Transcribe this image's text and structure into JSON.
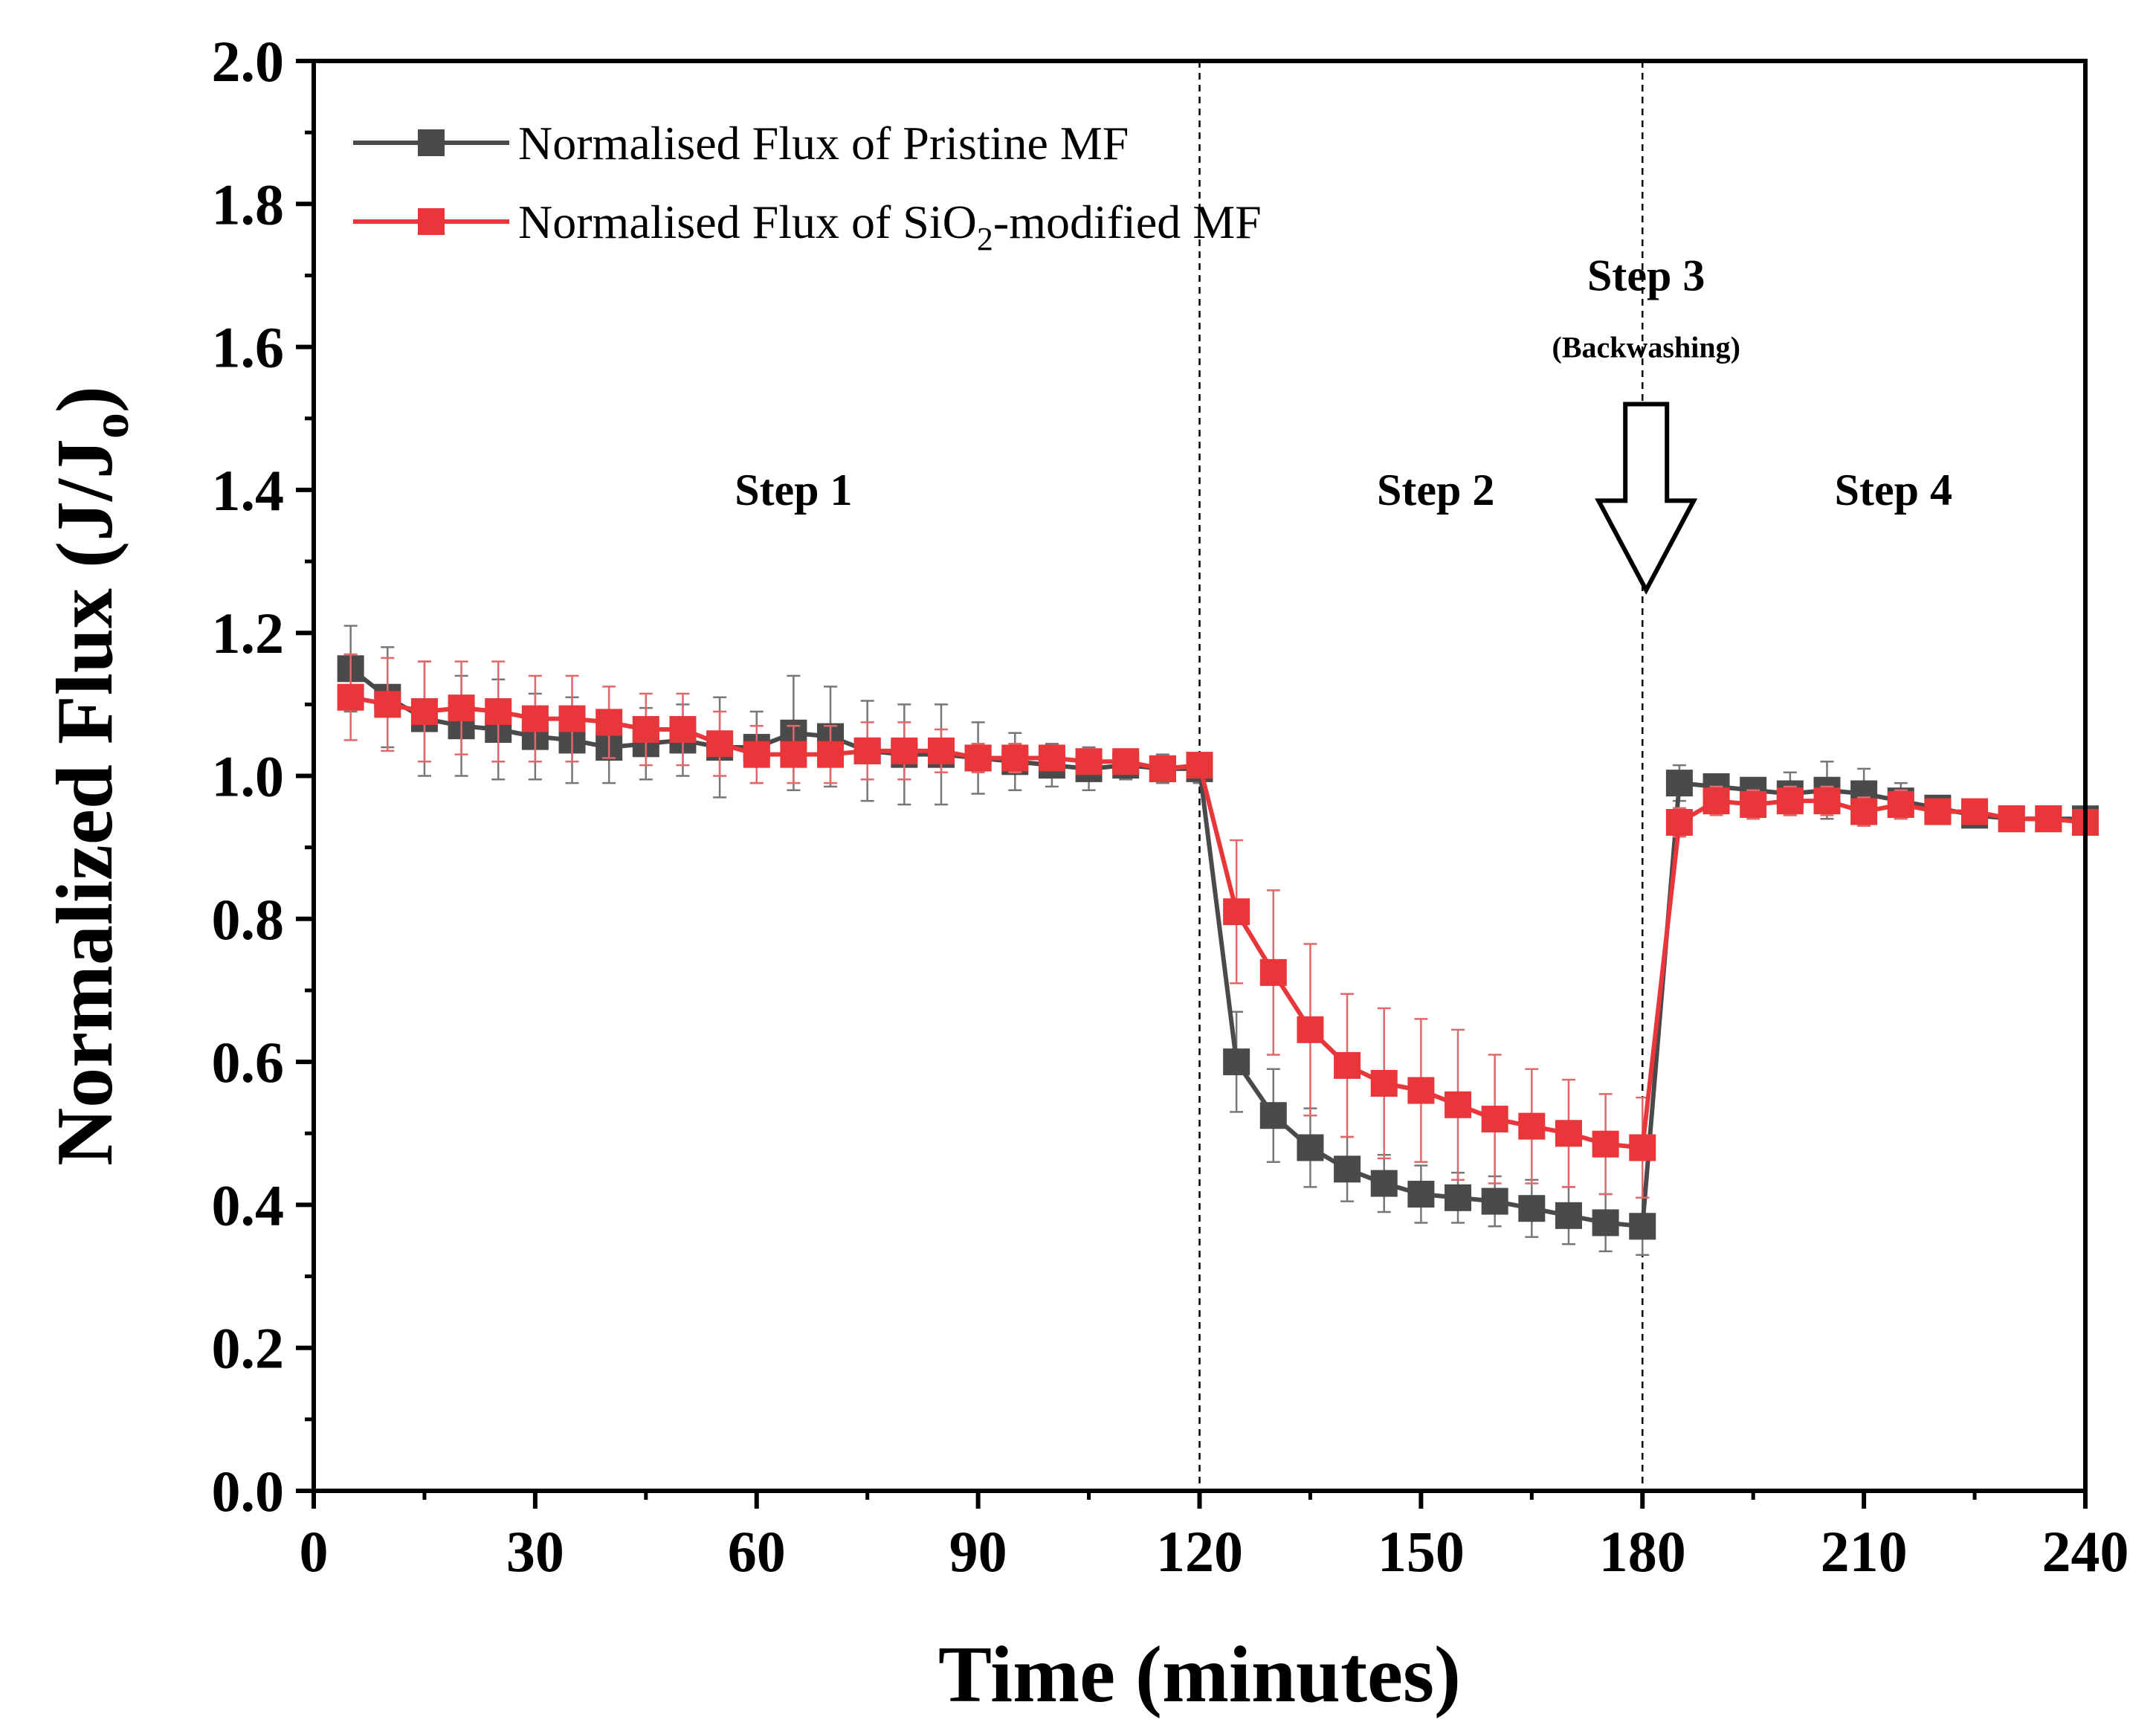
{
  "chart_data": {
    "type": "line",
    "xlabel": "Time (minutes)",
    "ylabel_main": "Normalized Flux (J/J",
    "ylabel_sub": "o",
    "ylabel_close": ")",
    "xlim": [
      0,
      240
    ],
    "ylim": [
      0.0,
      2.0
    ],
    "xticks": [
      0,
      30,
      60,
      90,
      120,
      150,
      180,
      210,
      240
    ],
    "xtick_labels": [
      "0",
      "30",
      "60",
      "90",
      "120",
      "150",
      "180",
      "210",
      "240"
    ],
    "yticks": [
      0.0,
      0.2,
      0.4,
      0.6,
      0.8,
      1.0,
      1.2,
      1.4,
      1.6,
      1.8,
      2.0
    ],
    "ytick_labels": [
      "0.0",
      "0.2",
      "0.4",
      "0.6",
      "0.8",
      "1.0",
      "1.2",
      "1.4",
      "1.6",
      "1.8",
      "2.0"
    ],
    "x": [
      5,
      10,
      15,
      20,
      25,
      30,
      35,
      40,
      45,
      50,
      55,
      60,
      65,
      70,
      75,
      80,
      85,
      90,
      95,
      100,
      105,
      110,
      115,
      120,
      125,
      130,
      135,
      140,
      145,
      150,
      155,
      160,
      165,
      170,
      175,
      180,
      185,
      190,
      195,
      200,
      205,
      210,
      215,
      220,
      225,
      230,
      235,
      240
    ],
    "series": [
      {
        "name": "Normalised Flux of Pristine MF",
        "color": "#4a4a4a",
        "values": [
          1.15,
          1.11,
          1.08,
          1.07,
          1.065,
          1.055,
          1.05,
          1.04,
          1.045,
          1.05,
          1.04,
          1.04,
          1.06,
          1.055,
          1.035,
          1.03,
          1.03,
          1.025,
          1.02,
          1.015,
          1.01,
          1.015,
          1.01,
          1.01,
          0.6,
          0.525,
          0.48,
          0.45,
          0.43,
          0.415,
          0.41,
          0.405,
          0.395,
          0.385,
          0.375,
          0.37,
          0.99,
          0.985,
          0.98,
          0.975,
          0.98,
          0.975,
          0.965,
          0.955,
          0.945,
          0.94,
          0.94,
          0.94
        ],
        "errors": [
          0.06,
          0.07,
          0.08,
          0.07,
          0.07,
          0.06,
          0.06,
          0.05,
          0.05,
          0.05,
          0.07,
          0.05,
          0.08,
          0.07,
          0.07,
          0.07,
          0.07,
          0.05,
          0.04,
          0.03,
          0.03,
          0.02,
          0.02,
          0.02,
          0.07,
          0.065,
          0.055,
          0.045,
          0.04,
          0.04,
          0.035,
          0.035,
          0.04,
          0.04,
          0.04,
          0.04,
          0.025,
          0.015,
          0.015,
          0.03,
          0.04,
          0.035,
          0.025,
          0.015,
          0.015,
          0.015,
          0.01,
          0.01
        ]
      },
      {
        "name": "Normalised Flux of SiO2-modified MF",
        "legend_text": [
          "Normalised Flux of SiO",
          "2",
          "-modified MF"
        ],
        "color": "#e8363b",
        "values": [
          1.11,
          1.1,
          1.09,
          1.095,
          1.09,
          1.08,
          1.08,
          1.075,
          1.065,
          1.065,
          1.045,
          1.03,
          1.03,
          1.03,
          1.035,
          1.035,
          1.035,
          1.025,
          1.025,
          1.025,
          1.02,
          1.02,
          1.01,
          1.015,
          0.81,
          0.725,
          0.645,
          0.595,
          0.57,
          0.56,
          0.54,
          0.52,
          0.51,
          0.5,
          0.485,
          0.48,
          0.935,
          0.965,
          0.96,
          0.965,
          0.965,
          0.95,
          0.96,
          0.95,
          0.95,
          0.94,
          0.94,
          0.935
        ],
        "errors": [
          0.06,
          0.065,
          0.07,
          0.065,
          0.07,
          0.06,
          0.06,
          0.05,
          0.05,
          0.05,
          0.045,
          0.04,
          0.04,
          0.04,
          0.04,
          0.04,
          0.03,
          0.02,
          0.02,
          0.015,
          0.015,
          0.01,
          0.01,
          0.015,
          0.1,
          0.115,
          0.12,
          0.1,
          0.105,
          0.1,
          0.105,
          0.09,
          0.08,
          0.075,
          0.07,
          0.07,
          0.02,
          0.02,
          0.02,
          0.02,
          0.02,
          0.02,
          0.02,
          0.015,
          0.015,
          0.015,
          0.01,
          0.01
        ]
      }
    ],
    "vlines": [
      120,
      180
    ],
    "annotations": {
      "step1": "Step 1",
      "step2": "Step 2",
      "step3": "Step 3",
      "step3_sub": "(Backwashing)",
      "step4": "Step 4"
    },
    "annotation_positions": {
      "step1": [
        65,
        1.4
      ],
      "step2": [
        152,
        1.4
      ],
      "step3": [
        180.5,
        1.7
      ],
      "step3_sub": [
        180.5,
        1.6
      ],
      "step4": [
        214,
        1.4
      ]
    },
    "legend_position": "top-left"
  }
}
